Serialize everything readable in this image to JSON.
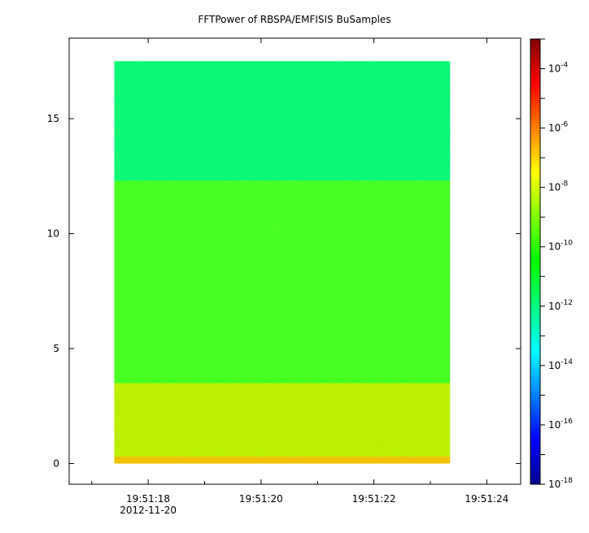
{
  "chart_data": {
    "type": "heatmap",
    "title": "FFTPower of RBSPA/EMFISIS  BuSamples",
    "xlabel": "",
    "ylabel": "",
    "x_ticks": [
      {
        "value": 18,
        "label": "19:51:18"
      },
      {
        "value": 20,
        "label": "19:51:20"
      },
      {
        "value": 22,
        "label": "19:51:22"
      },
      {
        "value": 24,
        "label": "19:51:24"
      }
    ],
    "x_date_label": "2012-11-20",
    "xlim": [
      16.6,
      24.6
    ],
    "data_x_range": [
      17.4,
      23.35
    ],
    "y_ticks": [
      0,
      5,
      10,
      15
    ],
    "ylim": [
      -0.9,
      18.5
    ],
    "data_y_range": [
      0,
      17.5
    ],
    "colorbar": {
      "scale": "log",
      "range": [
        1e-18,
        0.001
      ],
      "tick_exponents": [
        -18,
        -16,
        -14,
        -12,
        -10,
        -8,
        -6,
        -4
      ],
      "tick_base": "10",
      "colormap": [
        "#00008f",
        "#0000ff",
        "#007fff",
        "#00ffff",
        "#00ff7f",
        "#00ff00",
        "#7fff00",
        "#ffff00",
        "#ff7f00",
        "#ff0000",
        "#7f0000"
      ]
    },
    "bands": [
      {
        "y_from": 0.0,
        "y_to": 0.3,
        "level": -8.6,
        "color": "#f0c000"
      },
      {
        "y_from": 0.3,
        "y_to": 3.5,
        "level": -9.8,
        "color": "#b8f000"
      },
      {
        "y_from": 3.5,
        "y_to": 12.3,
        "level": -10.6,
        "color": "#40ff20"
      },
      {
        "y_from": 12.3,
        "y_to": 17.5,
        "level": -12.0,
        "color": "#00f878"
      }
    ]
  }
}
